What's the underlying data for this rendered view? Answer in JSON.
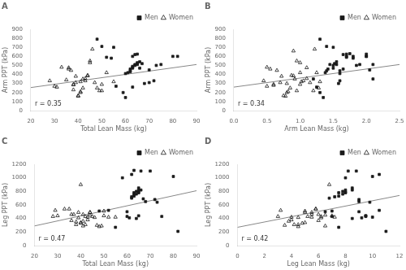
{
  "chart_data": [
    {
      "type": "scatter",
      "title": "A",
      "x_label": "Total Lean Mass (kg)",
      "y_label": "Arm PPT (kPa)",
      "annotations": [
        "r = 0.35"
      ],
      "xlim": [
        20,
        90
      ],
      "ylim": [
        0,
        900
      ],
      "xticks": [
        20,
        30,
        40,
        50,
        60,
        70,
        80,
        90
      ],
      "yticks": [
        0,
        100,
        200,
        300,
        400,
        500,
        600,
        700,
        800,
        900
      ],
      "grid": false,
      "legend": "top",
      "series": [
        {
          "name": "Men",
          "color": "#1a1a1a",
          "marker": "square",
          "x": [
            50,
            52,
            54,
            56,
            59,
            60,
            61,
            62,
            62,
            63,
            63,
            63,
            64,
            64,
            65,
            65,
            65,
            66,
            66,
            67,
            68,
            70,
            72,
            73,
            75,
            80,
            82,
            48,
            55,
            62,
            63,
            64,
            65,
            70,
            60,
            63
          ],
          "values": [
            710,
            590,
            580,
            270,
            200,
            410,
            420,
            430,
            460,
            470,
            480,
            490,
            500,
            510,
            510,
            520,
            530,
            540,
            470,
            520,
            300,
            310,
            330,
            500,
            510,
            600,
            600,
            790,
            700,
            440,
            600,
            620,
            625,
            450,
            145,
            260
          ]
        },
        {
          "name": "Women",
          "color": "#1a1a1a",
          "marker": "triangle_open",
          "x": [
            28,
            30,
            31,
            33,
            35,
            36,
            36,
            37,
            38,
            38,
            38,
            39,
            39,
            40,
            40,
            41,
            41,
            41,
            42,
            42,
            43,
            43,
            44,
            44,
            45,
            45,
            46,
            47,
            48,
            49,
            50,
            50,
            52,
            55
          ],
          "values": [
            330,
            270,
            260,
            480,
            340,
            460,
            475,
            445,
            285,
            290,
            230,
            310,
            380,
            165,
            160,
            200,
            210,
            320,
            250,
            350,
            330,
            355,
            385,
            390,
            550,
            530,
            680,
            310,
            250,
            220,
            220,
            290,
            420,
            320
          ]
        },
        {
          "type": "line",
          "color": "#888888",
          "x": [
            20,
            90
          ],
          "values": [
            255,
            510
          ]
        }
      ]
    },
    {
      "type": "scatter",
      "title": "B",
      "x_label": "Arm Lean Mass (kg)",
      "y_label": "Arm PPT (kPa)",
      "annotations": [
        "r = 0.34"
      ],
      "xlim": [
        0.0,
        2.5
      ],
      "ylim": [
        0,
        900
      ],
      "xticks": [
        {
          "value": 0,
          "label": "0.0"
        },
        0.5,
        {
          "value": 1,
          "label": "1.0"
        },
        1.5,
        {
          "value": 2,
          "label": "2.0"
        },
        2.5
      ],
      "yticks": [
        0,
        100,
        200,
        300,
        400,
        500,
        600,
        700,
        800,
        900
      ],
      "grid": false,
      "legend": "top",
      "series": [
        {
          "name": "Men",
          "color": "#1a1a1a",
          "marker": "square",
          "x": [
            1.2,
            1.25,
            1.3,
            1.35,
            1.38,
            1.4,
            1.42,
            1.45,
            1.5,
            1.5,
            1.52,
            1.55,
            1.55,
            1.58,
            1.6,
            1.6,
            1.65,
            1.65,
            1.7,
            1.7,
            1.75,
            1.8,
            1.85,
            1.9,
            2.0,
            2.0,
            2.05,
            2.1,
            1.3,
            1.4,
            1.5,
            1.6,
            1.7,
            1.8,
            2.0,
            2.1
          ],
          "values": [
            350,
            260,
            200,
            145,
            420,
            440,
            460,
            510,
            470,
            500,
            520,
            510,
            540,
            300,
            330,
            410,
            460,
            620,
            600,
            625,
            630,
            600,
            500,
            510,
            600,
            625,
            450,
            510,
            790,
            710,
            700,
            440,
            590,
            580,
            600,
            350
          ]
        },
        {
          "name": "Women",
          "color": "#1a1a1a",
          "marker": "triangle_open",
          "x": [
            0.45,
            0.5,
            0.5,
            0.55,
            0.6,
            0.6,
            0.65,
            0.7,
            0.72,
            0.75,
            0.78,
            0.8,
            0.82,
            0.85,
            0.87,
            0.9,
            0.92,
            0.95,
            0.95,
            1.0,
            1.0,
            1.02,
            1.05,
            1.1,
            1.1,
            1.15,
            1.2,
            1.22,
            1.25,
            1.28,
            1.3,
            0.8,
            0.9,
            1.0
          ],
          "values": [
            330,
            270,
            480,
            460,
            280,
            290,
            445,
            310,
            380,
            165,
            160,
            200,
            210,
            250,
            390,
            385,
            350,
            220,
            550,
            530,
            290,
            320,
            330,
            355,
            475,
            310,
            220,
            680,
            420,
            250,
            320,
            300,
            660,
            420
          ]
        },
        {
          "type": "line",
          "color": "#888888",
          "x": [
            0.0,
            2.5
          ],
          "values": [
            260,
            510
          ]
        }
      ]
    },
    {
      "type": "scatter",
      "title": "C",
      "x_label": "Total Lean Mass (kg)",
      "y_label": "Leg PPT (kPa)",
      "annotations": [
        "r = 0.47"
      ],
      "xlim": [
        20,
        90
      ],
      "ylim": [
        0,
        1200
      ],
      "xticks": [
        20,
        30,
        40,
        50,
        60,
        70,
        80,
        90
      ],
      "yticks": [
        0,
        200,
        400,
        600,
        800,
        1000,
        1200
      ],
      "grid": false,
      "legend": "top",
      "series": [
        {
          "name": "Men",
          "color": "#1a1a1a",
          "marker": "square",
          "x": [
            48,
            52,
            55,
            58,
            60,
            60,
            61,
            62,
            62,
            63,
            63,
            63,
            64,
            64,
            65,
            65,
            65,
            65,
            66,
            66,
            67,
            68,
            70,
            72,
            73,
            75,
            80,
            82,
            62,
            63,
            64,
            65
          ],
          "values": [
            510,
            520,
            270,
            1000,
            500,
            430,
            410,
            700,
            720,
            730,
            750,
            780,
            760,
            800,
            780,
            790,
            820,
            850,
            820,
            1100,
            690,
            650,
            1100,
            680,
            640,
            430,
            1020,
            210,
            1050,
            1110,
            400,
            440
          ]
        },
        {
          "name": "Women",
          "color": "#1a1a1a",
          "marker": "triangle_open",
          "x": [
            28,
            29,
            30,
            33,
            35,
            36,
            36,
            37,
            38,
            38,
            39,
            39,
            40,
            40,
            40,
            41,
            41,
            41,
            42,
            42,
            43,
            43,
            44,
            44,
            44,
            45,
            46,
            47,
            48,
            49,
            50,
            50,
            52,
            55
          ],
          "values": [
            430,
            520,
            440,
            540,
            540,
            370,
            460,
            460,
            310,
            350,
            410,
            490,
            330,
            340,
            900,
            290,
            360,
            460,
            310,
            430,
            380,
            420,
            490,
            490,
            450,
            430,
            415,
            300,
            280,
            290,
            440,
            510,
            420,
            420
          ]
        },
        {
          "type": "line",
          "color": "#888888",
          "x": [
            20,
            90
          ],
          "values": [
            290,
            810
          ]
        }
      ]
    },
    {
      "type": "scatter",
      "title": "D",
      "x_label": "Leg Lean Mass (kg)",
      "y_label": "Leg PPT (kPa)",
      "annotations": [
        "r = 0.42"
      ],
      "xlim": [
        0,
        12
      ],
      "ylim": [
        0,
        1200
      ],
      "xticks": [
        0,
        2,
        4,
        6,
        8,
        10,
        12
      ],
      "yticks": [
        0,
        200,
        400,
        600,
        800,
        1000,
        1200
      ],
      "grid": false,
      "legend": "top",
      "series": [
        {
          "name": "Men",
          "color": "#1a1a1a",
          "marker": "square",
          "x": [
            6.5,
            6.8,
            7.0,
            7.2,
            7.5,
            7.5,
            7.8,
            7.8,
            8.0,
            8.0,
            8.0,
            8.2,
            8.5,
            8.5,
            8.8,
            9.0,
            9.0,
            9.2,
            9.5,
            9.5,
            9.8,
            10.0,
            10.5,
            11.0,
            7.0,
            7.5,
            8.0,
            8.5,
            9.0,
            9.5,
            10.0,
            10.5
          ],
          "values": [
            500,
            700,
            510,
            720,
            730,
            780,
            760,
            800,
            780,
            790,
            820,
            1100,
            820,
            850,
            1100,
            650,
            680,
            410,
            430,
            440,
            640,
            1020,
            1050,
            210,
            430,
            270,
            1000,
            400,
            500,
            440,
            420,
            520
          ]
        },
        {
          "name": "Women",
          "color": "#1a1a1a",
          "marker": "triangle_open",
          "x": [
            3.0,
            3.2,
            3.5,
            3.8,
            4.0,
            4.0,
            4.2,
            4.5,
            4.5,
            4.8,
            5.0,
            5.0,
            5.2,
            5.5,
            5.5,
            5.8,
            5.8,
            6.0,
            6.0,
            6.2,
            6.2,
            6.5,
            6.5,
            6.8,
            7.0,
            7.2,
            4.5,
            5.0,
            5.5
          ],
          "values": [
            430,
            520,
            300,
            360,
            380,
            420,
            310,
            310,
            415,
            330,
            340,
            490,
            430,
            460,
            490,
            540,
            540,
            370,
            460,
            410,
            430,
            290,
            450,
            900,
            440,
            420,
            280,
            510,
            420
          ]
        },
        {
          "type": "line",
          "color": "#888888",
          "x": [
            0,
            12
          ],
          "values": [
            270,
            740
          ]
        }
      ]
    }
  ]
}
